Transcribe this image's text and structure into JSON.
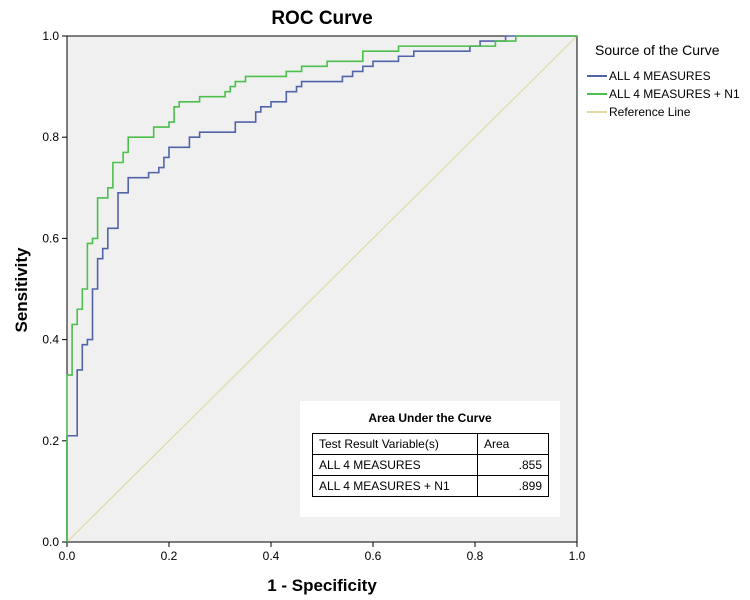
{
  "chart_data": {
    "type": "line",
    "title": "ROC Curve",
    "xlabel": "1 - Specificity",
    "ylabel": "Sensitivity",
    "xlim": [
      0,
      1
    ],
    "ylim": [
      0,
      1
    ],
    "x_ticks": [
      "0.0",
      "0.2",
      "0.4",
      "0.6",
      "0.8",
      "1.0"
    ],
    "y_ticks": [
      "0.0",
      "0.2",
      "0.4",
      "0.6",
      "0.8",
      "1.0"
    ],
    "legend": {
      "title": "Source of the Curve",
      "placement": "right"
    },
    "series": [
      {
        "name": "ALL 4 MEASURES",
        "color": "#5264a8",
        "points": [
          [
            0,
            0
          ],
          [
            0,
            0.21
          ],
          [
            0.02,
            0.21
          ],
          [
            0.02,
            0.34
          ],
          [
            0.03,
            0.34
          ],
          [
            0.03,
            0.39
          ],
          [
            0.04,
            0.39
          ],
          [
            0.04,
            0.4
          ],
          [
            0.05,
            0.4
          ],
          [
            0.05,
            0.5
          ],
          [
            0.06,
            0.5
          ],
          [
            0.06,
            0.56
          ],
          [
            0.07,
            0.56
          ],
          [
            0.07,
            0.58
          ],
          [
            0.08,
            0.58
          ],
          [
            0.08,
            0.62
          ],
          [
            0.1,
            0.62
          ],
          [
            0.1,
            0.69
          ],
          [
            0.12,
            0.69
          ],
          [
            0.12,
            0.72
          ],
          [
            0.16,
            0.72
          ],
          [
            0.16,
            0.73
          ],
          [
            0.18,
            0.73
          ],
          [
            0.18,
            0.74
          ],
          [
            0.19,
            0.74
          ],
          [
            0.19,
            0.76
          ],
          [
            0.2,
            0.76
          ],
          [
            0.2,
            0.78
          ],
          [
            0.24,
            0.78
          ],
          [
            0.24,
            0.8
          ],
          [
            0.26,
            0.8
          ],
          [
            0.26,
            0.81
          ],
          [
            0.33,
            0.81
          ],
          [
            0.33,
            0.83
          ],
          [
            0.37,
            0.83
          ],
          [
            0.37,
            0.85
          ],
          [
            0.38,
            0.85
          ],
          [
            0.38,
            0.86
          ],
          [
            0.4,
            0.86
          ],
          [
            0.4,
            0.87
          ],
          [
            0.43,
            0.87
          ],
          [
            0.43,
            0.89
          ],
          [
            0.45,
            0.89
          ],
          [
            0.45,
            0.9
          ],
          [
            0.46,
            0.9
          ],
          [
            0.46,
            0.91
          ],
          [
            0.54,
            0.91
          ],
          [
            0.54,
            0.92
          ],
          [
            0.56,
            0.92
          ],
          [
            0.56,
            0.93
          ],
          [
            0.58,
            0.93
          ],
          [
            0.58,
            0.94
          ],
          [
            0.6,
            0.94
          ],
          [
            0.6,
            0.95
          ],
          [
            0.65,
            0.95
          ],
          [
            0.65,
            0.96
          ],
          [
            0.68,
            0.96
          ],
          [
            0.68,
            0.97
          ],
          [
            0.79,
            0.97
          ],
          [
            0.79,
            0.98
          ],
          [
            0.81,
            0.98
          ],
          [
            0.81,
            0.99
          ],
          [
            0.86,
            0.99
          ],
          [
            0.86,
            1.0
          ],
          [
            1.0,
            1.0
          ]
        ]
      },
      {
        "name": "ALL 4 MEASURES + N1",
        "color": "#4cbf4c",
        "points": [
          [
            0,
            0
          ],
          [
            0,
            0.33
          ],
          [
            0.01,
            0.33
          ],
          [
            0.01,
            0.43
          ],
          [
            0.02,
            0.43
          ],
          [
            0.02,
            0.46
          ],
          [
            0.03,
            0.46
          ],
          [
            0.03,
            0.5
          ],
          [
            0.04,
            0.5
          ],
          [
            0.04,
            0.59
          ],
          [
            0.05,
            0.59
          ],
          [
            0.05,
            0.6
          ],
          [
            0.06,
            0.6
          ],
          [
            0.06,
            0.68
          ],
          [
            0.08,
            0.68
          ],
          [
            0.08,
            0.7
          ],
          [
            0.09,
            0.7
          ],
          [
            0.09,
            0.75
          ],
          [
            0.11,
            0.75
          ],
          [
            0.11,
            0.77
          ],
          [
            0.12,
            0.77
          ],
          [
            0.12,
            0.8
          ],
          [
            0.17,
            0.8
          ],
          [
            0.17,
            0.82
          ],
          [
            0.2,
            0.82
          ],
          [
            0.2,
            0.83
          ],
          [
            0.21,
            0.83
          ],
          [
            0.21,
            0.86
          ],
          [
            0.22,
            0.86
          ],
          [
            0.22,
            0.87
          ],
          [
            0.26,
            0.87
          ],
          [
            0.26,
            0.88
          ],
          [
            0.31,
            0.88
          ],
          [
            0.31,
            0.89
          ],
          [
            0.32,
            0.89
          ],
          [
            0.32,
            0.9
          ],
          [
            0.33,
            0.9
          ],
          [
            0.33,
            0.91
          ],
          [
            0.35,
            0.91
          ],
          [
            0.35,
            0.92
          ],
          [
            0.43,
            0.92
          ],
          [
            0.43,
            0.93
          ],
          [
            0.46,
            0.93
          ],
          [
            0.46,
            0.94
          ],
          [
            0.51,
            0.94
          ],
          [
            0.51,
            0.95
          ],
          [
            0.58,
            0.95
          ],
          [
            0.58,
            0.97
          ],
          [
            0.65,
            0.97
          ],
          [
            0.65,
            0.98
          ],
          [
            0.84,
            0.98
          ],
          [
            0.84,
            0.99
          ],
          [
            0.88,
            0.99
          ],
          [
            0.88,
            1.0
          ],
          [
            1.0,
            1.0
          ]
        ]
      },
      {
        "name": "Reference Line",
        "color": "#dedba6",
        "points": [
          [
            0,
            0
          ],
          [
            1,
            1
          ]
        ]
      }
    ],
    "auc_table": {
      "title": "Area Under the Curve",
      "headers": [
        "Test Result Variable(s)",
        "Area"
      ],
      "rows": [
        {
          "variable": "ALL 4 MEASURES",
          "area": ".855"
        },
        {
          "variable": "ALL 4 MEASURES + N1",
          "area": ".899"
        }
      ]
    }
  }
}
